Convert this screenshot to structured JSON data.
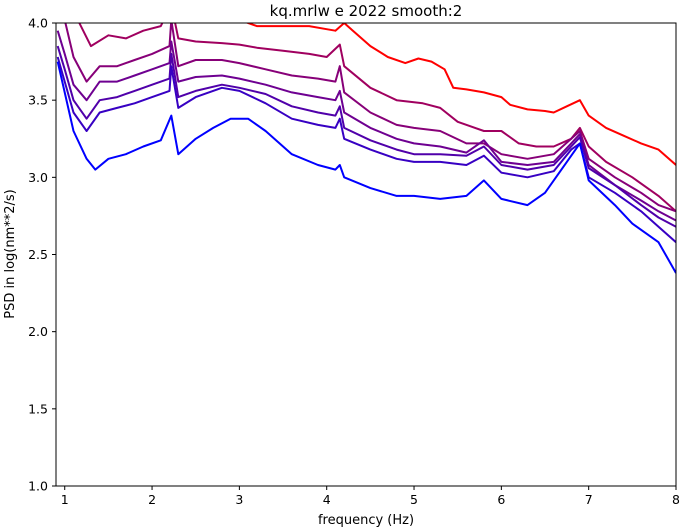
{
  "chart_data": {
    "type": "line",
    "title": "kq.mrlw e 2022 smooth:2",
    "xlabel": "frequency (Hz)",
    "ylabel": "PSD in log(nm**2/s)",
    "xlim": [
      0.9,
      8.0
    ],
    "ylim": [
      1.0,
      4.0
    ],
    "xticks": [
      "1",
      "2",
      "3",
      "4",
      "5",
      "6",
      "7",
      "8"
    ],
    "yticks": [
      "1.0",
      "1.5",
      "2.0",
      "2.5",
      "3.0",
      "3.5",
      "4.0"
    ],
    "grid": false,
    "legend": "none",
    "series": [
      {
        "color": "#ff0000",
        "points": [
          [
            2.2,
            4.02
          ],
          [
            2.3,
            4.15
          ],
          [
            2.5,
            4.1
          ],
          [
            2.7,
            4.05
          ],
          [
            3.0,
            4.02
          ],
          [
            3.2,
            3.98
          ],
          [
            3.5,
            3.98
          ],
          [
            3.8,
            3.98
          ],
          [
            4.0,
            3.96
          ],
          [
            4.1,
            3.95
          ],
          [
            4.2,
            4.0
          ],
          [
            4.3,
            3.95
          ],
          [
            4.5,
            3.85
          ],
          [
            4.7,
            3.78
          ],
          [
            4.9,
            3.74
          ],
          [
            5.05,
            3.77
          ],
          [
            5.2,
            3.75
          ],
          [
            5.35,
            3.7
          ],
          [
            5.45,
            3.58
          ],
          [
            5.6,
            3.57
          ],
          [
            5.8,
            3.55
          ],
          [
            6.0,
            3.52
          ],
          [
            6.1,
            3.47
          ],
          [
            6.3,
            3.44
          ],
          [
            6.5,
            3.43
          ],
          [
            6.6,
            3.42
          ],
          [
            6.75,
            3.46
          ],
          [
            6.9,
            3.5
          ],
          [
            7.0,
            3.4
          ],
          [
            7.2,
            3.32
          ],
          [
            7.4,
            3.27
          ],
          [
            7.6,
            3.22
          ],
          [
            7.8,
            3.18
          ],
          [
            8.0,
            3.08
          ]
        ]
      },
      {
        "color": "#a0005f",
        "points": [
          [
            1.15,
            4.02
          ],
          [
            1.3,
            3.85
          ],
          [
            1.5,
            3.92
          ],
          [
            1.7,
            3.9
          ],
          [
            1.9,
            3.95
          ],
          [
            2.1,
            3.98
          ],
          [
            2.22,
            4.12
          ],
          [
            2.3,
            3.9
          ],
          [
            2.5,
            3.88
          ],
          [
            2.8,
            3.87
          ],
          [
            3.0,
            3.86
          ],
          [
            3.2,
            3.84
          ],
          [
            3.5,
            3.82
          ],
          [
            3.8,
            3.8
          ],
          [
            4.0,
            3.78
          ],
          [
            4.15,
            3.86
          ],
          [
            4.2,
            3.72
          ],
          [
            4.5,
            3.58
          ],
          [
            4.8,
            3.5
          ],
          [
            5.1,
            3.48
          ],
          [
            5.3,
            3.45
          ],
          [
            5.5,
            3.36
          ],
          [
            5.8,
            3.3
          ],
          [
            6.0,
            3.3
          ],
          [
            6.2,
            3.22
          ],
          [
            6.4,
            3.2
          ],
          [
            6.6,
            3.2
          ],
          [
            6.8,
            3.25
          ],
          [
            6.9,
            3.32
          ],
          [
            7.0,
            3.2
          ],
          [
            7.2,
            3.1
          ],
          [
            7.5,
            3.0
          ],
          [
            7.8,
            2.88
          ],
          [
            8.0,
            2.78
          ]
        ]
      },
      {
        "color": "#870078",
        "points": [
          [
            1.0,
            4.02
          ],
          [
            1.1,
            3.78
          ],
          [
            1.25,
            3.62
          ],
          [
            1.4,
            3.72
          ],
          [
            1.6,
            3.72
          ],
          [
            1.8,
            3.76
          ],
          [
            2.0,
            3.8
          ],
          [
            2.2,
            3.85
          ],
          [
            2.22,
            4.02
          ],
          [
            2.3,
            3.72
          ],
          [
            2.5,
            3.76
          ],
          [
            2.8,
            3.76
          ],
          [
            3.0,
            3.74
          ],
          [
            3.3,
            3.7
          ],
          [
            3.6,
            3.66
          ],
          [
            3.9,
            3.64
          ],
          [
            4.1,
            3.62
          ],
          [
            4.15,
            3.72
          ],
          [
            4.2,
            3.55
          ],
          [
            4.5,
            3.42
          ],
          [
            4.8,
            3.34
          ],
          [
            5.0,
            3.32
          ],
          [
            5.3,
            3.3
          ],
          [
            5.6,
            3.22
          ],
          [
            5.8,
            3.22
          ],
          [
            6.0,
            3.15
          ],
          [
            6.3,
            3.12
          ],
          [
            6.6,
            3.15
          ],
          [
            6.8,
            3.25
          ],
          [
            6.9,
            3.3
          ],
          [
            7.0,
            3.12
          ],
          [
            7.3,
            3.0
          ],
          [
            7.6,
            2.9
          ],
          [
            7.8,
            2.82
          ],
          [
            8.0,
            2.78
          ]
        ]
      },
      {
        "color": "#6e0091",
        "points": [
          [
            0.92,
            3.95
          ],
          [
            1.0,
            3.8
          ],
          [
            1.1,
            3.6
          ],
          [
            1.25,
            3.5
          ],
          [
            1.4,
            3.62
          ],
          [
            1.6,
            3.62
          ],
          [
            1.8,
            3.66
          ],
          [
            2.0,
            3.7
          ],
          [
            2.2,
            3.74
          ],
          [
            2.22,
            3.88
          ],
          [
            2.3,
            3.62
          ],
          [
            2.5,
            3.65
          ],
          [
            2.8,
            3.66
          ],
          [
            3.0,
            3.64
          ],
          [
            3.3,
            3.6
          ],
          [
            3.6,
            3.55
          ],
          [
            3.9,
            3.52
          ],
          [
            4.1,
            3.5
          ],
          [
            4.15,
            3.56
          ],
          [
            4.2,
            3.42
          ],
          [
            4.5,
            3.32
          ],
          [
            4.8,
            3.25
          ],
          [
            5.0,
            3.22
          ],
          [
            5.3,
            3.2
          ],
          [
            5.6,
            3.16
          ],
          [
            5.8,
            3.24
          ],
          [
            6.0,
            3.1
          ],
          [
            6.3,
            3.08
          ],
          [
            6.6,
            3.1
          ],
          [
            6.8,
            3.22
          ],
          [
            6.9,
            3.28
          ],
          [
            7.0,
            3.08
          ],
          [
            7.3,
            2.95
          ],
          [
            7.6,
            2.85
          ],
          [
            7.8,
            2.78
          ],
          [
            8.0,
            2.72
          ]
        ]
      },
      {
        "color": "#5000aa",
        "points": [
          [
            0.92,
            3.85
          ],
          [
            1.0,
            3.7
          ],
          [
            1.1,
            3.5
          ],
          [
            1.25,
            3.38
          ],
          [
            1.4,
            3.5
          ],
          [
            1.6,
            3.52
          ],
          [
            1.8,
            3.56
          ],
          [
            2.0,
            3.6
          ],
          [
            2.2,
            3.64
          ],
          [
            2.22,
            3.8
          ],
          [
            2.3,
            3.52
          ],
          [
            2.5,
            3.56
          ],
          [
            2.8,
            3.6
          ],
          [
            3.0,
            3.58
          ],
          [
            3.3,
            3.54
          ],
          [
            3.6,
            3.46
          ],
          [
            3.9,
            3.42
          ],
          [
            4.1,
            3.4
          ],
          [
            4.15,
            3.46
          ],
          [
            4.2,
            3.32
          ],
          [
            4.5,
            3.24
          ],
          [
            4.8,
            3.18
          ],
          [
            5.0,
            3.15
          ],
          [
            5.3,
            3.15
          ],
          [
            5.6,
            3.14
          ],
          [
            5.8,
            3.2
          ],
          [
            6.0,
            3.08
          ],
          [
            6.3,
            3.05
          ],
          [
            6.6,
            3.08
          ],
          [
            6.8,
            3.2
          ],
          [
            6.9,
            3.26
          ],
          [
            7.0,
            3.06
          ],
          [
            7.3,
            2.95
          ],
          [
            7.6,
            2.82
          ],
          [
            7.8,
            2.74
          ],
          [
            8.0,
            2.68
          ]
        ]
      },
      {
        "color": "#3700c3",
        "points": [
          [
            0.92,
            3.78
          ],
          [
            1.0,
            3.62
          ],
          [
            1.1,
            3.42
          ],
          [
            1.25,
            3.3
          ],
          [
            1.4,
            3.42
          ],
          [
            1.6,
            3.45
          ],
          [
            1.8,
            3.48
          ],
          [
            2.0,
            3.52
          ],
          [
            2.2,
            3.56
          ],
          [
            2.22,
            3.72
          ],
          [
            2.3,
            3.45
          ],
          [
            2.5,
            3.52
          ],
          [
            2.8,
            3.58
          ],
          [
            3.0,
            3.56
          ],
          [
            3.3,
            3.48
          ],
          [
            3.6,
            3.38
          ],
          [
            3.9,
            3.34
          ],
          [
            4.1,
            3.32
          ],
          [
            4.15,
            3.38
          ],
          [
            4.2,
            3.25
          ],
          [
            4.5,
            3.18
          ],
          [
            4.8,
            3.12
          ],
          [
            5.0,
            3.1
          ],
          [
            5.3,
            3.1
          ],
          [
            5.6,
            3.08
          ],
          [
            5.8,
            3.14
          ],
          [
            6.0,
            3.03
          ],
          [
            6.3,
            3.0
          ],
          [
            6.6,
            3.04
          ],
          [
            6.8,
            3.18
          ],
          [
            6.9,
            3.22
          ],
          [
            7.0,
            3.0
          ],
          [
            7.3,
            2.9
          ],
          [
            7.6,
            2.78
          ],
          [
            7.8,
            2.68
          ],
          [
            8.0,
            2.58
          ]
        ]
      },
      {
        "color": "#0000ff",
        "points": [
          [
            0.92,
            3.75
          ],
          [
            1.0,
            3.55
          ],
          [
            1.1,
            3.3
          ],
          [
            1.25,
            3.12
          ],
          [
            1.35,
            3.05
          ],
          [
            1.5,
            3.12
          ],
          [
            1.7,
            3.15
          ],
          [
            1.9,
            3.2
          ],
          [
            2.1,
            3.24
          ],
          [
            2.22,
            3.4
          ],
          [
            2.3,
            3.15
          ],
          [
            2.5,
            3.25
          ],
          [
            2.7,
            3.32
          ],
          [
            2.9,
            3.38
          ],
          [
            3.1,
            3.38
          ],
          [
            3.3,
            3.3
          ],
          [
            3.6,
            3.15
          ],
          [
            3.9,
            3.08
          ],
          [
            4.1,
            3.05
          ],
          [
            4.15,
            3.08
          ],
          [
            4.2,
            3.0
          ],
          [
            4.5,
            2.93
          ],
          [
            4.8,
            2.88
          ],
          [
            5.0,
            2.88
          ],
          [
            5.3,
            2.86
          ],
          [
            5.6,
            2.88
          ],
          [
            5.8,
            2.98
          ],
          [
            6.0,
            2.86
          ],
          [
            6.3,
            2.82
          ],
          [
            6.5,
            2.9
          ],
          [
            6.7,
            3.06
          ],
          [
            6.9,
            3.22
          ],
          [
            7.0,
            2.98
          ],
          [
            7.3,
            2.82
          ],
          [
            7.5,
            2.7
          ],
          [
            7.8,
            2.58
          ],
          [
            8.0,
            2.38
          ]
        ]
      }
    ]
  }
}
